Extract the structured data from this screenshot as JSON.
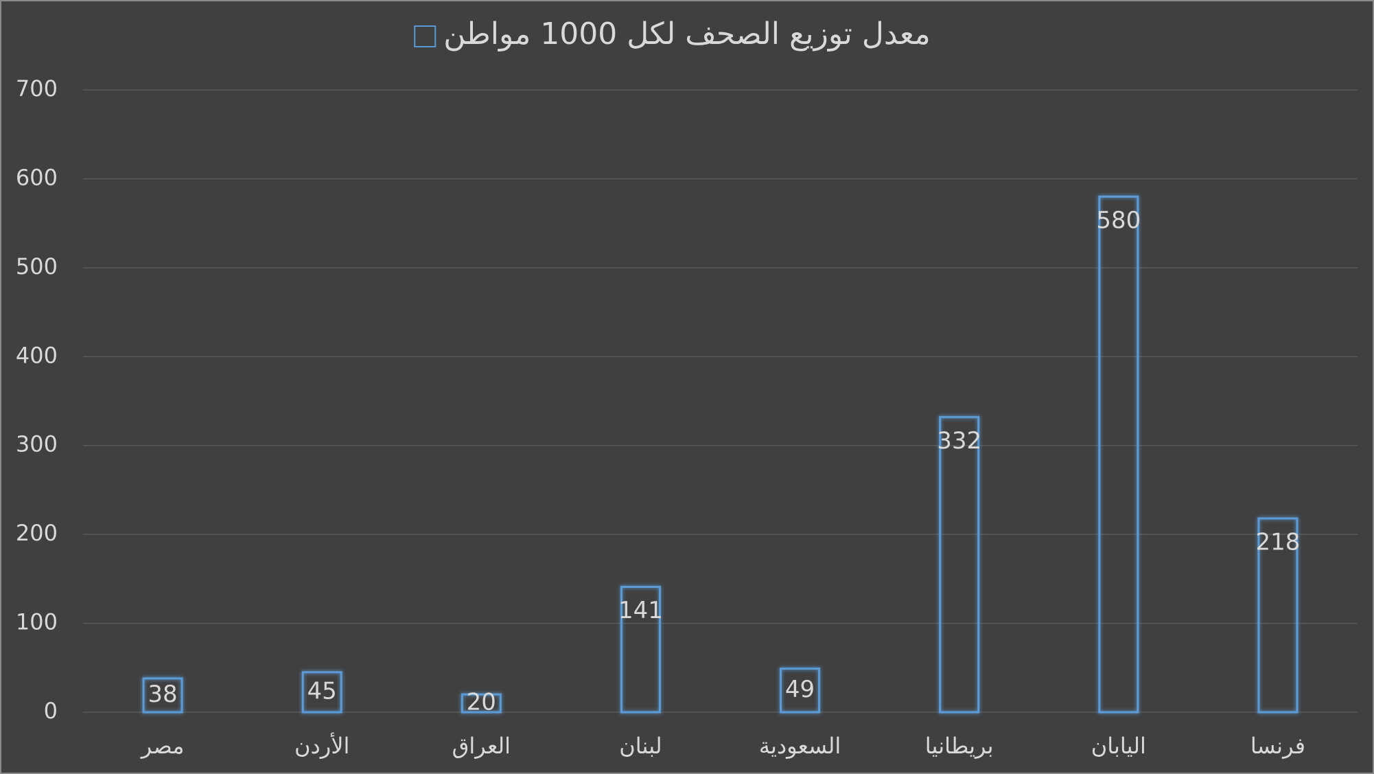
{
  "chart_data": {
    "type": "bar",
    "categories": [
      "مصر",
      "الأردن",
      "العراق",
      "لبنان",
      "السعودية",
      "بريطانيا",
      "اليابان",
      "فرنسا"
    ],
    "series": [
      {
        "name": "معدل توزيع الصحف لكل 1000 مواطن",
        "color": "#5b9bd5",
        "values": [
          38,
          45,
          20,
          141,
          49,
          332,
          580,
          218
        ]
      }
    ],
    "ylim": [
      0,
      700
    ],
    "yticks": [
      0,
      100,
      200,
      300,
      400,
      500,
      600,
      700
    ],
    "grid": true,
    "legend": "top",
    "data_labels": true
  }
}
